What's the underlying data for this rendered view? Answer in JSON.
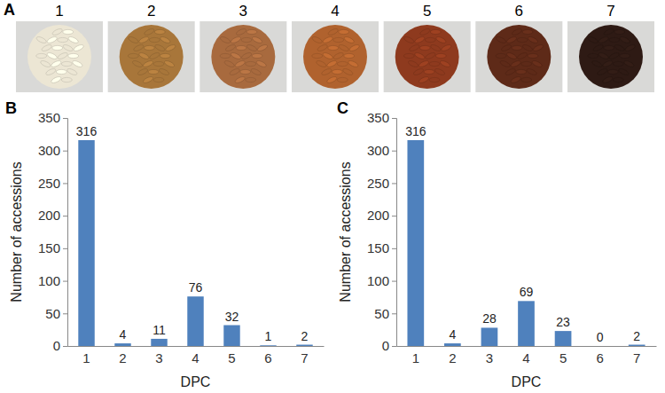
{
  "image_panel": {
    "label": "A",
    "samples": [
      {
        "label": "1",
        "color": "#ece6d4"
      },
      {
        "label": "2",
        "color": "#a8763a"
      },
      {
        "label": "3",
        "color": "#a86a3e"
      },
      {
        "label": "4",
        "color": "#b0622e"
      },
      {
        "label": "5",
        "color": "#8e3a1e"
      },
      {
        "label": "6",
        "color": "#5e2a18"
      },
      {
        "label": "7",
        "color": "#2e1a14"
      }
    ]
  },
  "chart_data": [
    {
      "type": "bar",
      "panel": "B",
      "x_label": "DPC",
      "y_label": "Number of accessions",
      "categories": [
        "1",
        "2",
        "3",
        "4",
        "5",
        "6",
        "7"
      ],
      "values": [
        316,
        4,
        11,
        76,
        32,
        1,
        2
      ],
      "color": "#4f81bd",
      "ylim": [
        0,
        350
      ],
      "yticks": [
        0,
        50,
        100,
        150,
        200,
        250,
        300,
        350
      ],
      "data_labels": true
    },
    {
      "type": "bar",
      "panel": "C",
      "x_label": "DPC",
      "y_label": "Number of accessions",
      "categories": [
        "1",
        "2",
        "3",
        "4",
        "5",
        "6",
        "7"
      ],
      "values": [
        316,
        4,
        28,
        69,
        23,
        0,
        2
      ],
      "color": "#4f81bd",
      "ylim": [
        0,
        350
      ],
      "yticks": [
        0,
        50,
        100,
        150,
        200,
        250,
        300,
        350
      ],
      "data_labels": true
    }
  ]
}
